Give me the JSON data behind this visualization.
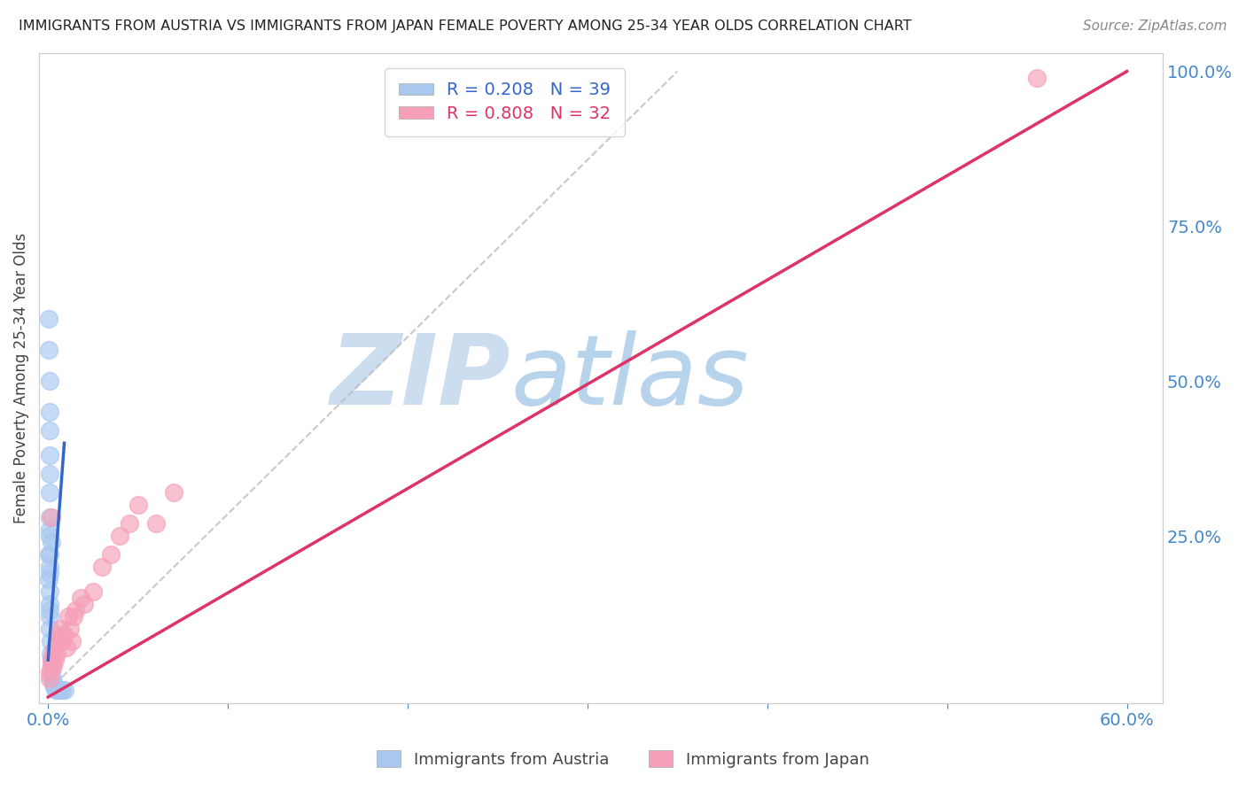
{
  "title": "IMMIGRANTS FROM AUSTRIA VS IMMIGRANTS FROM JAPAN FEMALE POVERTY AMONG 25-34 YEAR OLDS CORRELATION CHART",
  "source": "Source: ZipAtlas.com",
  "ylabel": "Female Poverty Among 25-34 Year Olds",
  "xlim": [
    -0.005,
    0.62
  ],
  "ylim": [
    -0.02,
    1.03
  ],
  "xtick_positions": [
    0.0,
    0.1,
    0.2,
    0.3,
    0.4,
    0.5,
    0.6
  ],
  "xtick_labels": [
    "0.0%",
    "",
    "",
    "",
    "",
    "",
    "60.0%"
  ],
  "ytick_right_positions": [
    0.25,
    0.5,
    0.75,
    1.0
  ],
  "ytick_right_labels": [
    "25.0%",
    "50.0%",
    "75.0%",
    "100.0%"
  ],
  "austria_color": "#a8c8f0",
  "japan_color": "#f5a0b8",
  "austria_line_color": "#3366cc",
  "japan_line_color": "#dd3366",
  "diag_color": "#bbbbbb",
  "tick_color": "#4488cc",
  "grid_color": "#e0e0e0",
  "watermark_color": "#cce4f5",
  "background_color": "#ffffff",
  "legend_austria_text": "R = 0.208   N = 39",
  "legend_japan_text": "R = 0.808   N = 32",
  "austria_x": [
    0.0005,
    0.0006,
    0.0007,
    0.0008,
    0.0009,
    0.001,
    0.001,
    0.001,
    0.001,
    0.001,
    0.001,
    0.001,
    0.001,
    0.001,
    0.001,
    0.0015,
    0.0015,
    0.002,
    0.002,
    0.002,
    0.0025,
    0.003,
    0.003,
    0.0035,
    0.004,
    0.004,
    0.005,
    0.005,
    0.006,
    0.007,
    0.008,
    0.009,
    0.0005,
    0.0006,
    0.0007,
    0.0008,
    0.001,
    0.001,
    0.002
  ],
  "austria_y": [
    0.6,
    0.55,
    0.5,
    0.45,
    0.42,
    0.38,
    0.35,
    0.32,
    0.28,
    0.25,
    0.22,
    0.19,
    0.16,
    0.13,
    0.1,
    0.08,
    0.06,
    0.05,
    0.04,
    0.03,
    0.02,
    0.015,
    0.01,
    0.008,
    0.005,
    0.003,
    0.002,
    0.001,
    0.001,
    0.001,
    0.001,
    0.001,
    0.22,
    0.18,
    0.14,
    0.12,
    0.26,
    0.2,
    0.24
  ],
  "japan_x": [
    0.001,
    0.001,
    0.002,
    0.002,
    0.003,
    0.003,
    0.004,
    0.004,
    0.005,
    0.005,
    0.006,
    0.007,
    0.008,
    0.009,
    0.01,
    0.011,
    0.012,
    0.013,
    0.014,
    0.015,
    0.018,
    0.02,
    0.025,
    0.03,
    0.035,
    0.04,
    0.045,
    0.05,
    0.06,
    0.07,
    0.002,
    0.55
  ],
  "japan_y": [
    0.02,
    0.03,
    0.04,
    0.05,
    0.06,
    0.04,
    0.07,
    0.05,
    0.08,
    0.06,
    0.09,
    0.1,
    0.08,
    0.09,
    0.07,
    0.12,
    0.1,
    0.08,
    0.12,
    0.13,
    0.15,
    0.14,
    0.16,
    0.2,
    0.22,
    0.25,
    0.27,
    0.3,
    0.27,
    0.32,
    0.28,
    0.99
  ],
  "austria_line_x": [
    0.0,
    0.009
  ],
  "austria_line_y": [
    0.05,
    0.4
  ],
  "japan_line_x": [
    0.0,
    0.6
  ],
  "japan_line_y": [
    -0.01,
    1.0
  ],
  "diag_line_x": [
    0.0,
    0.35
  ],
  "diag_line_y": [
    0.0,
    1.0
  ]
}
